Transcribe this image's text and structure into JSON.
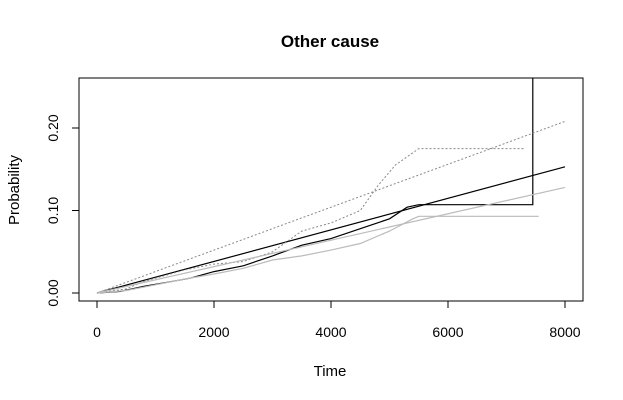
{
  "chart_data": {
    "type": "line",
    "title": "Other cause",
    "xlabel": "Time",
    "ylabel": "Probability",
    "xlim": [
      0,
      8000
    ],
    "ylim": [
      0,
      0.25
    ],
    "x_ticks": [
      "0",
      "2000",
      "4000",
      "6000",
      "8000"
    ],
    "y_ticks": [
      "0.00",
      "0.10",
      "0.20"
    ],
    "grid": false,
    "legend": "none",
    "series": [
      {
        "style": "solid",
        "color": "#000000",
        "points": [
          [
            0,
            0
          ],
          [
            8000,
            0.153
          ]
        ]
      },
      {
        "style": "solid",
        "color": "#000000",
        "points": [
          [
            0,
            0
          ],
          [
            400,
            0.002
          ],
          [
            800,
            0.008
          ],
          [
            1200,
            0.013
          ],
          [
            1600,
            0.018
          ],
          [
            2000,
            0.026
          ],
          [
            2500,
            0.033
          ],
          [
            3000,
            0.045
          ],
          [
            3500,
            0.058
          ],
          [
            4000,
            0.066
          ],
          [
            4500,
            0.078
          ],
          [
            5000,
            0.09
          ],
          [
            5300,
            0.104
          ],
          [
            5500,
            0.107
          ],
          [
            7450,
            0.107
          ],
          [
            7450,
            0.26
          ]
        ]
      },
      {
        "style": "dotted",
        "color": "#888888",
        "points": [
          [
            0,
            0
          ],
          [
            8000,
            0.208
          ]
        ]
      },
      {
        "style": "dotted",
        "color": "#888888",
        "points": [
          [
            0,
            0
          ],
          [
            500,
            0.005
          ],
          [
            800,
            0.014
          ],
          [
            1200,
            0.022
          ],
          [
            1500,
            0.028
          ],
          [
            2000,
            0.035
          ],
          [
            2500,
            0.038
          ],
          [
            3000,
            0.05
          ],
          [
            3500,
            0.075
          ],
          [
            4000,
            0.085
          ],
          [
            4500,
            0.1
          ],
          [
            4800,
            0.13
          ],
          [
            5100,
            0.155
          ],
          [
            5500,
            0.175
          ],
          [
            7300,
            0.175
          ]
        ]
      },
      {
        "style": "solid",
        "color": "#bbbbbb",
        "points": [
          [
            0,
            0
          ],
          [
            8000,
            0.128
          ]
        ]
      },
      {
        "style": "solid",
        "color": "#bbbbbb",
        "points": [
          [
            0,
            0
          ],
          [
            500,
            0.003
          ],
          [
            1000,
            0.01
          ],
          [
            1500,
            0.017
          ],
          [
            2000,
            0.023
          ],
          [
            2500,
            0.03
          ],
          [
            3000,
            0.04
          ],
          [
            3500,
            0.045
          ],
          [
            4000,
            0.052
          ],
          [
            4500,
            0.06
          ],
          [
            5000,
            0.075
          ],
          [
            5400,
            0.09
          ],
          [
            5500,
            0.093
          ],
          [
            7550,
            0.093
          ]
        ]
      }
    ]
  }
}
